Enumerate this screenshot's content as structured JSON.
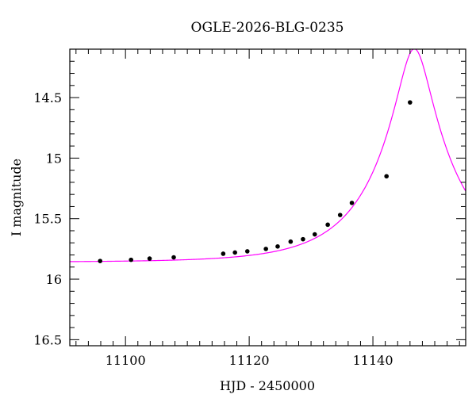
{
  "chart_data": {
    "type": "scatter",
    "title": "OGLE-2026-BLG-0235",
    "xlabel": "HJD - 2450000",
    "ylabel": "I magnitude",
    "xlim": [
      11091,
      11155
    ],
    "ylim": [
      16.55,
      14.1
    ],
    "y_inverted": true,
    "grid": false,
    "x_ticks": [
      11100,
      11120,
      11140
    ],
    "x_tick_labels": [
      "11100",
      "11120",
      "11140"
    ],
    "y_ticks": [
      14.5,
      15,
      15.5,
      16,
      16.5
    ],
    "y_tick_labels": [
      "14.5",
      "15",
      "15.5",
      "16",
      "16.5"
    ],
    "colors": {
      "points": "#000000",
      "model": "#ff00ff"
    },
    "series": [
      {
        "kind": "points",
        "x": [
          11095.9,
          11100.9,
          11103.9,
          11107.8,
          11115.8,
          11117.7,
          11119.7,
          11122.7,
          11124.6,
          11126.7,
          11128.7,
          11130.6,
          11132.7,
          11134.7,
          11136.6,
          11142.2,
          11146.0
        ],
        "y": [
          15.85,
          15.84,
          15.83,
          15.82,
          15.79,
          15.78,
          15.77,
          15.75,
          15.73,
          15.69,
          15.67,
          15.63,
          15.55,
          15.47,
          15.37,
          15.15,
          14.54
        ]
      },
      {
        "kind": "model",
        "t0": 11146.7,
        "u0": 0.2,
        "tE": 12.8,
        "baseline": 15.86
      }
    ]
  }
}
